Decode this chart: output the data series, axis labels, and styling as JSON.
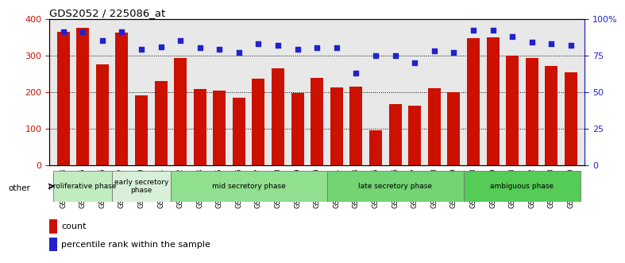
{
  "title": "GDS2052 / 225086_at",
  "samples": [
    "GSM109814",
    "GSM109815",
    "GSM109816",
    "GSM109817",
    "GSM109820",
    "GSM109821",
    "GSM109822",
    "GSM109824",
    "GSM109825",
    "GSM109826",
    "GSM109827",
    "GSM109828",
    "GSM109829",
    "GSM109830",
    "GSM109831",
    "GSM109834",
    "GSM109835",
    "GSM109836",
    "GSM109837",
    "GSM109838",
    "GSM109839",
    "GSM109818",
    "GSM109819",
    "GSM109823",
    "GSM109832",
    "GSM109833",
    "GSM109840"
  ],
  "counts": [
    365,
    375,
    275,
    362,
    190,
    230,
    292,
    208,
    204,
    185,
    236,
    264,
    198,
    238,
    212,
    215,
    95,
    167,
    163,
    210,
    200,
    347,
    349,
    300,
    293,
    270,
    253
  ],
  "percentiles": [
    91,
    91,
    85,
    91,
    79,
    81,
    85,
    80,
    79,
    77,
    83,
    82,
    79,
    80,
    80,
    63,
    75,
    75,
    70,
    78,
    77,
    92,
    92,
    88,
    84,
    83,
    82
  ],
  "phases": [
    {
      "label": "proliferative phase",
      "start": 0,
      "end": 3,
      "color": "#c0ecc0"
    },
    {
      "label": "early secretory\nphase",
      "start": 3,
      "end": 6,
      "color": "#d8f0d8"
    },
    {
      "label": "mid secretory phase",
      "start": 6,
      "end": 14,
      "color": "#90e090"
    },
    {
      "label": "late secretory phase",
      "start": 14,
      "end": 21,
      "color": "#72d472"
    },
    {
      "label": "ambiguous phase",
      "start": 21,
      "end": 27,
      "color": "#55cc55"
    }
  ],
  "bar_color": "#cc1100",
  "dot_color": "#2222cc",
  "left_ylim": [
    0,
    400
  ],
  "left_yticks": [
    0,
    100,
    200,
    300,
    400
  ],
  "right_yticks": [
    0,
    25,
    50,
    75,
    100
  ],
  "right_yticklabels": [
    "0",
    "25",
    "50",
    "75",
    "100%"
  ],
  "bg_color": "#e8e8e8"
}
